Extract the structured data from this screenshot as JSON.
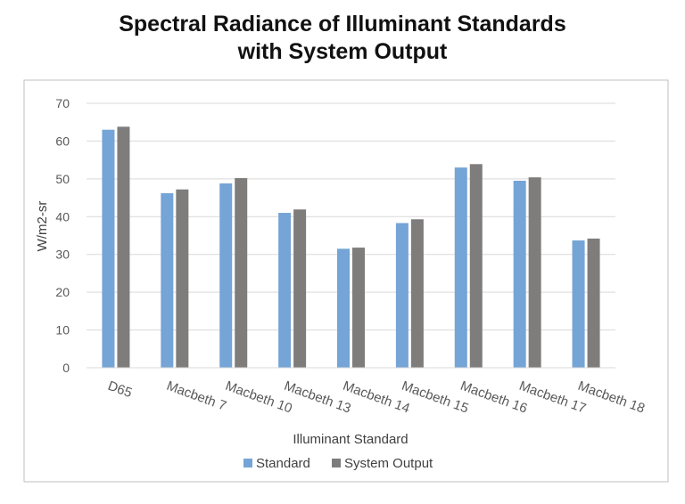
{
  "chart_data": {
    "type": "bar",
    "title_lines": [
      "Spectral Radiance of Illuminant Standards",
      "with System Output"
    ],
    "xlabel": "Illuminant Standard",
    "ylabel": "W/m2-sr",
    "ylim": [
      0,
      70
    ],
    "yticks": [
      0,
      10,
      20,
      30,
      40,
      50,
      60,
      70
    ],
    "grid": true,
    "legend_position": "bottom",
    "categories": [
      "D65",
      "Macbeth 7",
      "Macbeth 10",
      "Macbeth 13",
      "Macbeth 14",
      "Macbeth 15",
      "Macbeth 16",
      "Macbeth 17",
      "Macbeth 18"
    ],
    "series": [
      {
        "name": "Standard",
        "color": "#75a4d6",
        "values": [
          63.0,
          46.2,
          48.8,
          41.0,
          31.5,
          38.3,
          53.0,
          49.5,
          33.7
        ]
      },
      {
        "name": "System Output",
        "color": "#7f7d7c",
        "values": [
          63.8,
          47.2,
          50.2,
          41.9,
          31.8,
          39.3,
          53.9,
          50.4,
          34.2
        ]
      }
    ]
  }
}
